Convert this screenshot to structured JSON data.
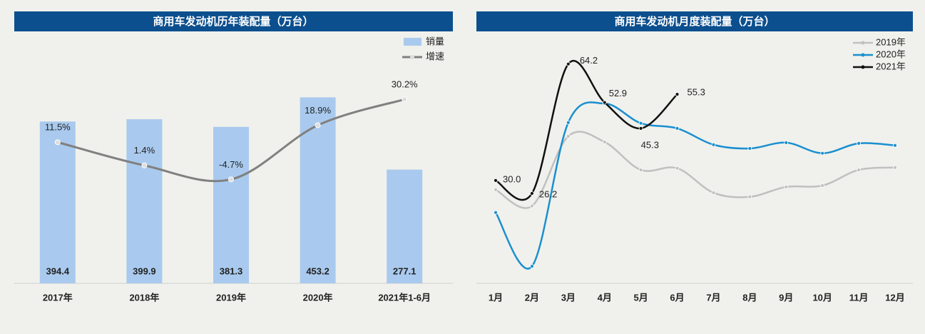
{
  "chart_data": [
    {
      "type": "bar",
      "title": "商用车发动机历年装配量（万台）",
      "categories": [
        "2017年",
        "2018年",
        "2019年",
        "2020年",
        "2021年1-6月"
      ],
      "series": [
        {
          "name": "销量",
          "color": "#a9caee",
          "values": [
            394.4,
            399.9,
            381.3,
            453.2,
            277.1
          ]
        },
        {
          "name": "增速",
          "color": "#808080",
          "axis": "y2",
          "values": [
            11.5,
            1.4,
            -4.7,
            18.9,
            30.2
          ],
          "value_labels": [
            "11.5%",
            "1.4%",
            "-4.7%",
            "18.9%",
            "30.2%"
          ]
        }
      ],
      "ylim": [
        0,
        600
      ],
      "y2lim": [
        -50,
        57.3
      ]
    },
    {
      "type": "line",
      "title": "商用车发动机月度装配量（万台）",
      "categories": [
        "1月",
        "2月",
        "3月",
        "4月",
        "5月",
        "6月",
        "7月",
        "8月",
        "9月",
        "10月",
        "11月",
        "12月"
      ],
      "series": [
        {
          "name": "2019年",
          "color": "#c0c0c0",
          "values": [
            27.3,
            22.5,
            43.0,
            41.3,
            33.1,
            33.6,
            26.4,
            25.2,
            28.1,
            28.5,
            33.1,
            33.8
          ]
        },
        {
          "name": "2020年",
          "color": "#1a8fd0",
          "values": [
            20.6,
            4.8,
            47.0,
            52.6,
            46.8,
            45.3,
            40.5,
            39.4,
            41.1,
            38.0,
            40.9,
            40.3
          ]
        },
        {
          "name": "2021年",
          "color": "#111111",
          "values": [
            30.0,
            26.2,
            64.2,
            52.9,
            45.3,
            55.3,
            null,
            null,
            null,
            null,
            null,
            null
          ],
          "value_labels": [
            "30.0",
            "26.2",
            "64.2",
            "52.9",
            "45.3",
            "55.3",
            null,
            null,
            null,
            null,
            null,
            null
          ]
        }
      ],
      "ylim": [
        0,
        70
      ]
    }
  ]
}
